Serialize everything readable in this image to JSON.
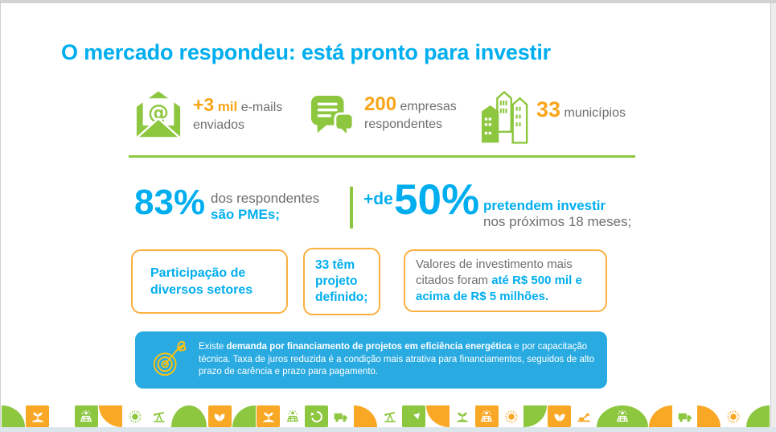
{
  "slide": {
    "title": "O mercado respondeu: está pronto para investir"
  },
  "colors": {
    "blue": "#00AEEF",
    "banner_blue": "#29ABE2",
    "green": "#8DC63F",
    "orange_number": "#F9A51A",
    "box_border": "#FBB040",
    "gray_text": "#6D6E71",
    "footer_orange": "#F9A825",
    "target_yellow": "#FFC20E"
  },
  "stats": [
    {
      "icon": "email-icon",
      "value": "+3",
      "unit": "mil",
      "tail": "e-mails",
      "line2": "enviados"
    },
    {
      "icon": "chat-icon",
      "value": "200",
      "tail": "empresas",
      "line2": "respondentes"
    },
    {
      "icon": "buildings-icon",
      "value": "33",
      "tail": "municípios"
    }
  ],
  "highlights": {
    "left": {
      "value": "83%",
      "text1": "dos respondentes",
      "text2": "são PMEs;"
    },
    "right": {
      "prefix": "+de",
      "value": "50%",
      "text1": "pretendem investir",
      "text2": "nos próximos 18 meses;"
    }
  },
  "boxes": [
    {
      "text": "Participação de diversos setores"
    },
    {
      "text": "33 têm projeto definido;"
    },
    {
      "gray": "Valores de investimento mais citados foram ",
      "blue": "até R$ 500 mil e acima de R$ 5 milhões."
    }
  ],
  "banner": {
    "icon": "target-icon",
    "pre": "Existe ",
    "bold": "demanda por financiamento de projetos em eficiência energética",
    "post": " e por capacitação técnica. Taxa de juros reduzida é a condição mais atrativa para financiamentos, seguidos de alto prazo de carência e prazo para pagamento."
  },
  "footer": {
    "tiles": [
      {
        "shape": "quarter-tr",
        "color": "green"
      },
      {
        "shape": "tile",
        "color": "orange",
        "icon": "plant"
      },
      {
        "shape": "blank"
      },
      {
        "shape": "tile",
        "color": "green",
        "icon": "solar"
      },
      {
        "shape": "quarter-bl",
        "color": "orange"
      },
      {
        "shape": "tile",
        "color": "white",
        "icon": "sun",
        "ic": "green"
      },
      {
        "shape": "tile",
        "color": "white",
        "icon": "pump",
        "ic": "green"
      },
      {
        "shape": "dome",
        "color": "green",
        "w": 1.5
      },
      {
        "shape": "tile",
        "color": "orange",
        "icon": "heart"
      },
      {
        "shape": "quarter-tl",
        "color": "green"
      },
      {
        "shape": "tile",
        "color": "orange",
        "icon": "plant"
      },
      {
        "shape": "tile",
        "color": "white",
        "icon": "solar",
        "ic": "green"
      },
      {
        "shape": "tile",
        "color": "green",
        "icon": "recycle"
      },
      {
        "shape": "tile",
        "color": "white",
        "icon": "truck",
        "ic": "green"
      },
      {
        "shape": "quarter-tr",
        "color": "orange"
      },
      {
        "shape": "tile",
        "color": "white",
        "icon": "pump",
        "ic": "green"
      },
      {
        "shape": "tile",
        "color": "green",
        "icon": "arrow"
      },
      {
        "shape": "quarter-bl",
        "color": "orange"
      },
      {
        "shape": "tile",
        "color": "white",
        "icon": "plant",
        "ic": "green"
      },
      {
        "shape": "tile",
        "color": "orange",
        "icon": "solar"
      },
      {
        "shape": "tile",
        "color": "white",
        "icon": "sun",
        "ic": "orange"
      },
      {
        "shape": "quarter-br",
        "color": "green"
      },
      {
        "shape": "tile",
        "color": "orange",
        "icon": "heart"
      },
      {
        "shape": "tile",
        "color": "white",
        "icon": "crane",
        "ic": "orange"
      },
      {
        "shape": "dome",
        "color": "green",
        "icon": "solar",
        "w": 2.2
      },
      {
        "shape": "quarter-tl",
        "color": "orange"
      },
      {
        "shape": "tile",
        "color": "white",
        "icon": "truck",
        "ic": "green"
      },
      {
        "shape": "quarter-tr",
        "color": "orange"
      },
      {
        "shape": "tile",
        "color": "white",
        "icon": "sun",
        "ic": "orange"
      },
      {
        "shape": "quarter-tl",
        "color": "green"
      }
    ]
  }
}
